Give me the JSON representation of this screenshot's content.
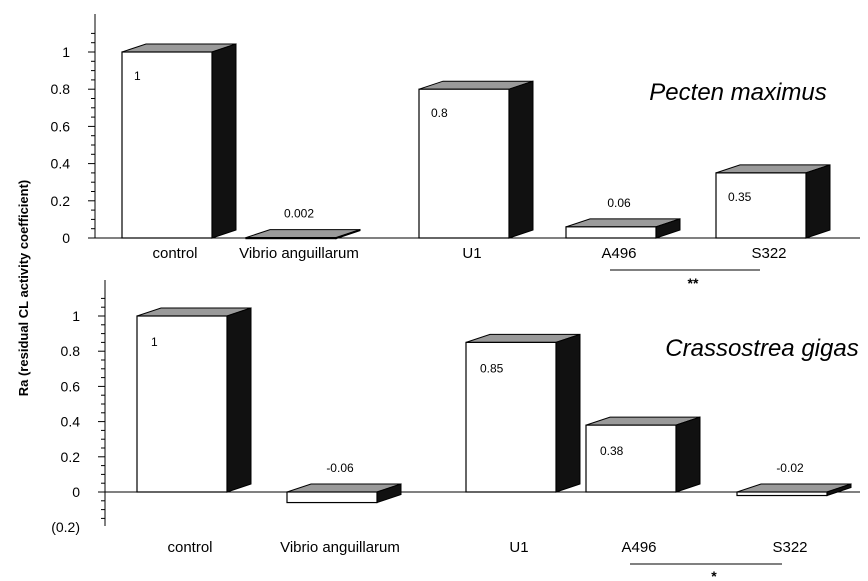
{
  "chart_data": [
    {
      "type": "bar",
      "title": "Pecten maximus",
      "categories": [
        "control",
        "Vibrio anguillarum",
        "U1",
        "A496",
        "S322"
      ],
      "values": [
        1,
        0.002,
        0.8,
        0.06,
        0.35
      ],
      "value_labels": [
        "1",
        "0.002",
        "0.8",
        "0.06",
        "0.35"
      ],
      "ylim": [
        0,
        1.1
      ],
      "yticks": [
        0,
        0.2,
        0.4,
        0.6,
        0.8,
        1
      ],
      "ytick_labels": [
        "0",
        "0.2",
        "0.4",
        "0.6",
        "0.8",
        "1"
      ],
      "significance": {
        "label": "**",
        "between": [
          "A496",
          "S322"
        ]
      },
      "style": "3d",
      "grid": false
    },
    {
      "type": "bar",
      "title": "Crassostrea gigas",
      "categories": [
        "control",
        "Vibrio anguillarum",
        "U1",
        "A496",
        "S322"
      ],
      "values": [
        1,
        -0.06,
        0.85,
        0.38,
        -0.02
      ],
      "value_labels": [
        "1",
        "-0.06",
        "0.85",
        "0.38",
        "-0.02"
      ],
      "ylim": [
        -0.2,
        1.1
      ],
      "yticks": [
        -0.2,
        0,
        0.2,
        0.4,
        0.6,
        0.8,
        1
      ],
      "ytick_labels": [
        "(0.2)",
        "0",
        "0.2",
        "0.4",
        "0.6",
        "0.8",
        "1"
      ],
      "significance": {
        "label": "*",
        "between": [
          "A496",
          "S322"
        ]
      },
      "style": "3d",
      "grid": false
    }
  ],
  "ylabel": "Ra (residual CL activity coefficient)",
  "colors": {
    "bar_face": "#ffffff",
    "bar_side": "#111111",
    "bar_top": "#9a9a9a",
    "axis": "#000000"
  }
}
